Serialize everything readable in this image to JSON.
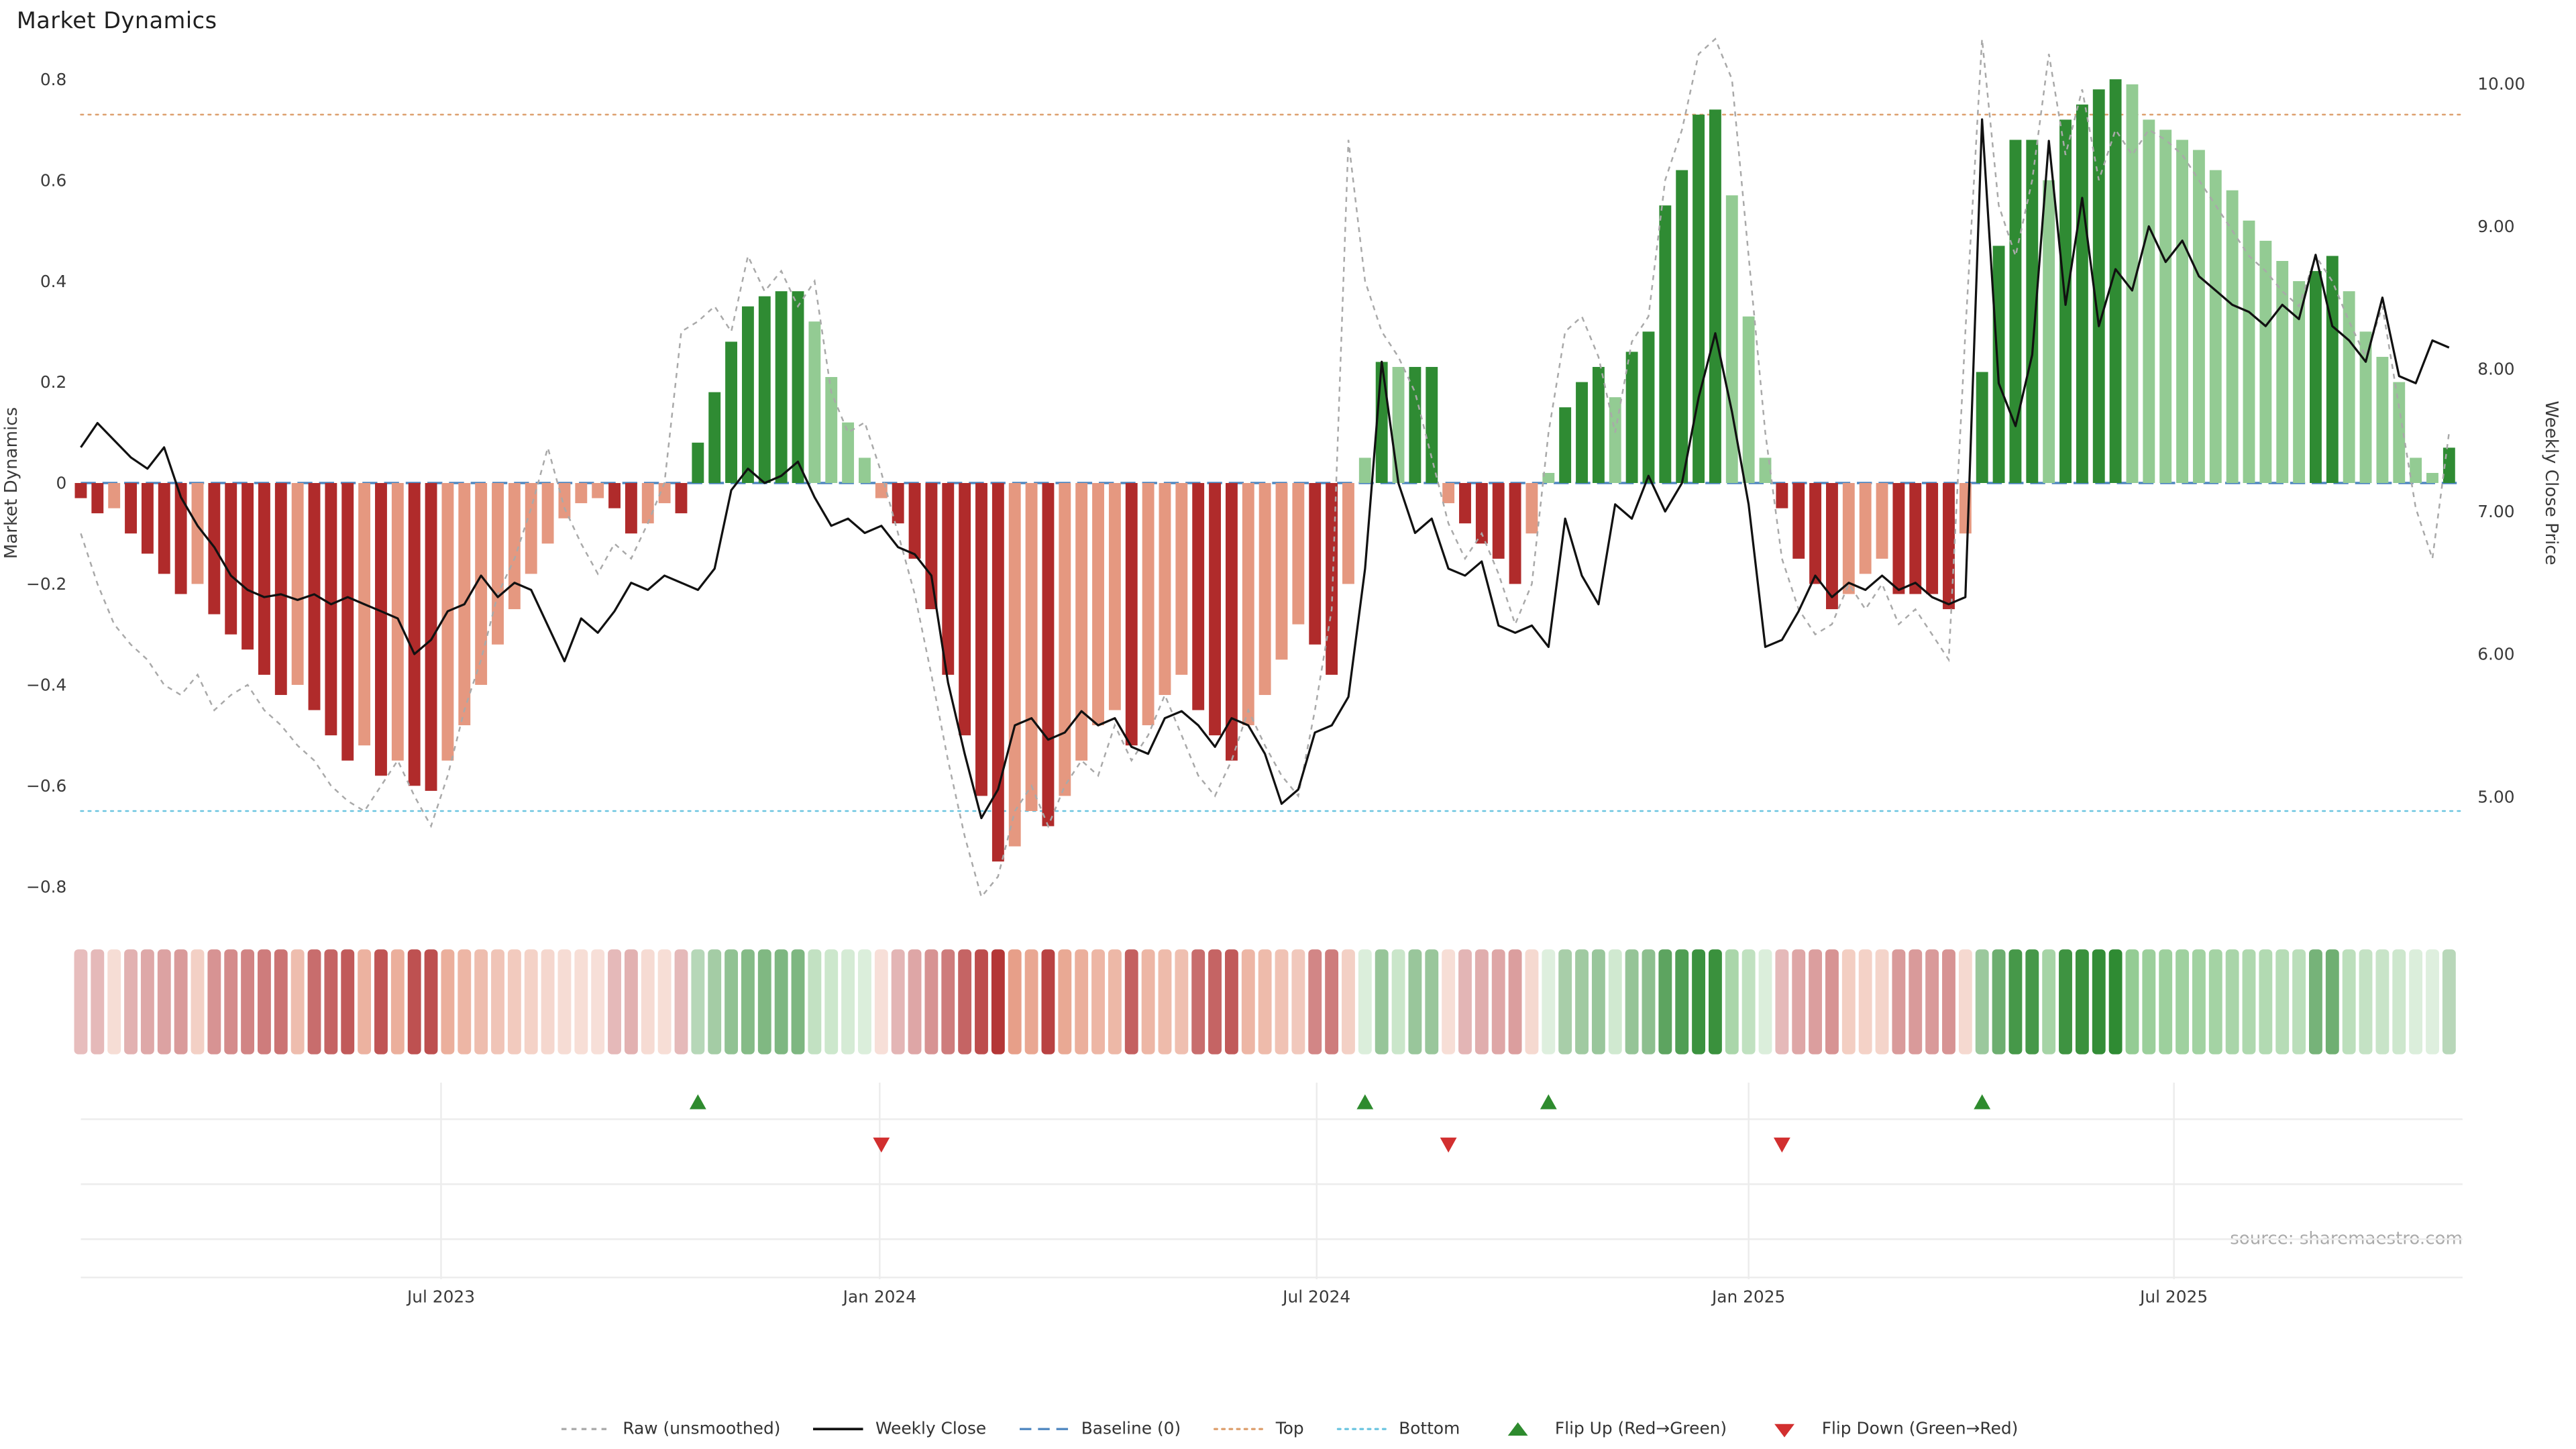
{
  "chart": {
    "title": "Market Dynamics",
    "y_left": {
      "label": "Market Dynamics",
      "ticks": [
        {
          "v": 0.8,
          "label": "0.8"
        },
        {
          "v": 0.6,
          "label": "0.6"
        },
        {
          "v": 0.4,
          "label": "0.4"
        },
        {
          "v": 0.2,
          "label": "0.2"
        },
        {
          "v": 0.0,
          "label": "0"
        },
        {
          "v": -0.2,
          "label": "−0.2"
        },
        {
          "v": -0.4,
          "label": "−0.4"
        },
        {
          "v": -0.6,
          "label": "−0.6"
        },
        {
          "v": -0.8,
          "label": "−0.8"
        }
      ]
    },
    "y_right": {
      "label": "Weekly Close Price",
      "ticks": [
        {
          "p": 10,
          "label": "10.00"
        },
        {
          "p": 9,
          "label": "9.00"
        },
        {
          "p": 8,
          "label": "8.00"
        },
        {
          "p": 7,
          "label": "7.00"
        },
        {
          "p": 6,
          "label": "6.00"
        },
        {
          "p": 5,
          "label": "5.00"
        }
      ]
    },
    "x_ticks": [
      {
        "label": "Jul 2023",
        "week": 21.6
      },
      {
        "label": "Jan 2024",
        "week": 47.9
      },
      {
        "label": "Jul 2024",
        "week": 74.1
      },
      {
        "label": "Jan 2025",
        "week": 100.0
      },
      {
        "label": "Jul 2025",
        "week": 125.5
      }
    ],
    "source": "source: sharemaestro.com",
    "legend": [
      {
        "label": "Raw (unsmoothed)",
        "glyph": "line-dashed",
        "color": "#a9a9a9"
      },
      {
        "label": "Weekly Close",
        "glyph": "line-solid",
        "color": "#111111"
      },
      {
        "label": "Baseline (0)",
        "glyph": "line-longdash",
        "color": "#4f87c0"
      },
      {
        "label": "Top",
        "glyph": "line-dotted",
        "color": "#dd9f6d"
      },
      {
        "label": "Bottom",
        "glyph": "line-dotted",
        "color": "#6cc5e0"
      },
      {
        "label": "Flip Up (Red→Green)",
        "glyph": "triangle-up",
        "color": "#2e8b2e"
      },
      {
        "label": "Flip Down (Green→Red)",
        "glyph": "triangle-down",
        "color": "#d22f2f"
      }
    ],
    "colors": {
      "bar_red_dark": "#b02b2b",
      "bar_red_light": "#e59880",
      "bar_green_dark": "#2f8b33",
      "bar_green_light": "#93cb93",
      "close_line": "#111111",
      "raw_line": "#a9a9a9",
      "baseline": "#4f87c0",
      "top_line": "#dd9f6d",
      "bottom_line": "#6cc5e0",
      "flip_up": "#2e8b2e",
      "flip_down": "#d22f2f",
      "grid": "#ececec",
      "tick_text": "#3a3a3a",
      "source_text": "#aaaaaa"
    }
  },
  "chart_data": {
    "type": "bar",
    "freq": "weekly",
    "start_date": "2023-02-03",
    "title": "Market Dynamics",
    "ylabel_left": "Market Dynamics",
    "ylabel_right": "Weekly Close Price",
    "ylim_left": [
      -0.88,
      0.84
    ],
    "ylim_right": [
      4.55,
      10.25
    ],
    "baseline": 0,
    "top": 0.73,
    "bottom": -0.65,
    "flip_up_weeks": [
      37,
      77,
      88,
      114
    ],
    "flip_down_weeks": [
      48,
      82,
      102
    ],
    "dynamics": [
      -0.03,
      -0.06,
      -0.05,
      -0.1,
      -0.14,
      -0.18,
      -0.22,
      -0.2,
      -0.26,
      -0.3,
      -0.33,
      -0.38,
      -0.42,
      -0.4,
      -0.45,
      -0.5,
      -0.55,
      -0.52,
      -0.58,
      -0.55,
      -0.6,
      -0.61,
      -0.55,
      -0.48,
      -0.4,
      -0.32,
      -0.25,
      -0.18,
      -0.12,
      -0.07,
      -0.04,
      -0.03,
      -0.05,
      -0.1,
      -0.08,
      -0.04,
      -0.06,
      0.08,
      0.18,
      0.28,
      0.35,
      0.37,
      0.38,
      0.38,
      0.32,
      0.21,
      0.12,
      0.05,
      -0.03,
      -0.08,
      -0.15,
      -0.25,
      -0.38,
      -0.5,
      -0.62,
      -0.75,
      -0.72,
      -0.65,
      -0.68,
      -0.62,
      -0.55,
      -0.48,
      -0.45,
      -0.52,
      -0.48,
      -0.42,
      -0.38,
      -0.45,
      -0.5,
      -0.55,
      -0.48,
      -0.42,
      -0.35,
      -0.28,
      -0.32,
      -0.38,
      -0.2,
      0.05,
      0.24,
      0.23,
      0.23,
      0.23,
      -0.04,
      -0.08,
      -0.12,
      -0.15,
      -0.2,
      -0.1,
      0.02,
      0.15,
      0.2,
      0.23,
      0.17,
      0.26,
      0.3,
      0.55,
      0.62,
      0.73,
      0.74,
      0.57,
      0.33,
      0.05,
      -0.05,
      -0.15,
      -0.2,
      -0.25,
      -0.22,
      -0.18,
      -0.15,
      -0.22,
      -0.22,
      -0.22,
      -0.25,
      -0.1,
      0.22,
      0.47,
      0.68,
      0.68,
      0.6,
      0.72,
      0.75,
      0.78,
      0.8,
      0.79,
      0.72,
      0.7,
      0.68,
      0.66,
      0.62,
      0.58,
      0.52,
      0.48,
      0.44,
      0.4,
      0.42,
      0.45,
      0.38,
      0.3,
      0.25,
      0.2,
      0.05,
      0.02,
      0.07
    ],
    "raw": [
      -0.1,
      -0.2,
      -0.28,
      -0.32,
      -0.35,
      -0.4,
      -0.42,
      -0.38,
      -0.45,
      -0.42,
      -0.4,
      -0.45,
      -0.48,
      -0.52,
      -0.55,
      -0.6,
      -0.63,
      -0.65,
      -0.6,
      -0.55,
      -0.62,
      -0.68,
      -0.58,
      -0.45,
      -0.35,
      -0.22,
      -0.15,
      -0.05,
      0.07,
      -0.05,
      -0.12,
      -0.18,
      -0.12,
      -0.15,
      -0.08,
      0.0,
      0.3,
      0.32,
      0.35,
      0.3,
      0.45,
      0.38,
      0.42,
      0.35,
      0.4,
      0.18,
      0.1,
      0.12,
      0.02,
      -0.1,
      -0.22,
      -0.38,
      -0.55,
      -0.7,
      -0.82,
      -0.78,
      -0.65,
      -0.6,
      -0.68,
      -0.6,
      -0.55,
      -0.58,
      -0.48,
      -0.55,
      -0.5,
      -0.42,
      -0.5,
      -0.58,
      -0.62,
      -0.55,
      -0.45,
      -0.52,
      -0.58,
      -0.62,
      -0.45,
      -0.25,
      0.68,
      0.4,
      0.3,
      0.25,
      0.18,
      0.05,
      -0.08,
      -0.15,
      -0.1,
      -0.18,
      -0.28,
      -0.2,
      0.1,
      0.3,
      0.33,
      0.25,
      0.1,
      0.28,
      0.33,
      0.6,
      0.7,
      0.85,
      0.88,
      0.8,
      0.45,
      0.1,
      -0.15,
      -0.25,
      -0.3,
      -0.28,
      -0.2,
      -0.25,
      -0.2,
      -0.28,
      -0.25,
      -0.3,
      -0.35,
      0.3,
      0.88,
      0.55,
      0.45,
      0.6,
      0.85,
      0.65,
      0.78,
      0.6,
      0.7,
      0.65,
      0.7,
      0.68,
      0.65,
      0.6,
      0.55,
      0.5,
      0.45,
      0.42,
      0.38,
      0.35,
      0.45,
      0.4,
      0.32,
      0.25,
      0.35,
      0.15,
      -0.05,
      -0.15,
      0.1
    ],
    "weekly_close": [
      7.45,
      7.62,
      7.5,
      7.38,
      7.3,
      7.45,
      7.1,
      6.9,
      6.75,
      6.55,
      6.45,
      6.4,
      6.42,
      6.38,
      6.42,
      6.35,
      6.4,
      6.35,
      6.3,
      6.25,
      6.0,
      6.1,
      6.3,
      6.35,
      6.55,
      6.4,
      6.5,
      6.45,
      6.2,
      5.95,
      6.25,
      6.15,
      6.3,
      6.5,
      6.45,
      6.55,
      6.5,
      6.45,
      6.6,
      7.15,
      7.3,
      7.2,
      7.25,
      7.35,
      7.1,
      6.9,
      6.95,
      6.85,
      6.9,
      6.75,
      6.7,
      6.55,
      5.8,
      5.3,
      4.85,
      5.05,
      5.5,
      5.55,
      5.4,
      5.45,
      5.6,
      5.5,
      5.55,
      5.35,
      5.3,
      5.55,
      5.6,
      5.5,
      5.35,
      5.55,
      5.5,
      5.3,
      4.95,
      5.05,
      5.45,
      5.5,
      5.7,
      6.6,
      8.05,
      7.2,
      6.85,
      6.95,
      6.6,
      6.55,
      6.65,
      6.2,
      6.15,
      6.2,
      6.05,
      6.95,
      6.55,
      6.35,
      7.05,
      6.95,
      7.25,
      7.0,
      7.2,
      7.8,
      8.25,
      7.7,
      7.05,
      6.05,
      6.1,
      6.3,
      6.55,
      6.4,
      6.5,
      6.45,
      6.55,
      6.45,
      6.5,
      6.4,
      6.35,
      6.4,
      9.75,
      7.9,
      7.6,
      8.1,
      9.6,
      8.45,
      9.2,
      8.3,
      8.7,
      8.55,
      9.0,
      8.75,
      8.9,
      8.65,
      8.55,
      8.45,
      8.4,
      8.3,
      8.45,
      8.35,
      8.8,
      8.3,
      8.2,
      8.05,
      8.5,
      7.95,
      7.9,
      8.2,
      8.15
    ]
  }
}
